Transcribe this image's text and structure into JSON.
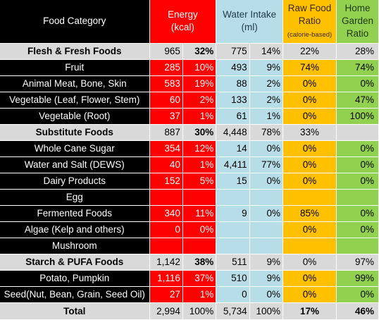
{
  "header": {
    "category": "Food Category",
    "energy_line1": "Energy",
    "energy_line2": "(kcal)",
    "water_line1": "Water Intake",
    "water_line2": "(ml)",
    "raw_line1": "Raw Food",
    "raw_line2": "Ratio",
    "raw_line3": "(calorie-based)",
    "home_line1": "Home",
    "home_line2": "Garden",
    "home_line3": "Ratio"
  },
  "rows": [
    {
      "name": "Flesh & Fresh Foods",
      "energy": "965",
      "energy_pct": "32%",
      "water": "775",
      "water_pct": "14%",
      "raw": "22%",
      "home": "28%"
    },
    {
      "name": "Fruit",
      "energy": "285",
      "energy_pct": "10%",
      "water": "493",
      "water_pct": "9%",
      "raw": "74%",
      "home": "74%"
    },
    {
      "name": "Animal Meat, Bone, Skin",
      "energy": "583",
      "energy_pct": "19%",
      "water": "88",
      "water_pct": "2%",
      "raw": "0%",
      "home": "0%"
    },
    {
      "name": "Vegetable (Leaf, Flower, Stem)",
      "energy": "60",
      "energy_pct": "2%",
      "water": "133",
      "water_pct": "2%",
      "raw": "0%",
      "home": "47%"
    },
    {
      "name": "Vegetable (Root)",
      "energy": "37",
      "energy_pct": "1%",
      "water": "61",
      "water_pct": "1%",
      "raw": "0%",
      "home": "100%"
    },
    {
      "name": "Substitute Foods",
      "energy": "887",
      "energy_pct": "30%",
      "water": "4,448",
      "water_pct": "78%",
      "raw": "33%",
      "home": ""
    },
    {
      "name": "Whole Cane Sugar",
      "energy": "354",
      "energy_pct": "12%",
      "water": "14",
      "water_pct": "0%",
      "raw": "0%",
      "home": "0%"
    },
    {
      "name": "Water and Salt (DEWS)",
      "energy": "40",
      "energy_pct": "1%",
      "water": "4,411",
      "water_pct": "77%",
      "raw": "0%",
      "home": "0%"
    },
    {
      "name": "Dairy Products",
      "energy": "152",
      "energy_pct": "5%",
      "water": "15",
      "water_pct": "0%",
      "raw": "0%",
      "home": "0%"
    },
    {
      "name": "Egg",
      "energy": "",
      "energy_pct": "",
      "water": "",
      "water_pct": "",
      "raw": "",
      "home": ""
    },
    {
      "name": "Fermented Foods",
      "energy": "340",
      "energy_pct": "11%",
      "water": "9",
      "water_pct": "0%",
      "raw": "85%",
      "home": "0%"
    },
    {
      "name": "Algae (Kelp and others)",
      "energy": "0",
      "energy_pct": "0%",
      "water": "",
      "water_pct": "",
      "raw": "0%",
      "home": "0%"
    },
    {
      "name": "Mushroom",
      "energy": "",
      "energy_pct": "",
      "water": "",
      "water_pct": "",
      "raw": "",
      "home": ""
    },
    {
      "name": "Starch & PUFA Foods",
      "energy": "1,142",
      "energy_pct": "38%",
      "water": "511",
      "water_pct": "9%",
      "raw": "0%",
      "home": "97%"
    },
    {
      "name": "Potato, Pumpkin",
      "energy": "1,116",
      "energy_pct": "37%",
      "water": "510",
      "water_pct": "9%",
      "raw": "0%",
      "home": "99%"
    },
    {
      "name": "Seed(Nut, Bean, Grain, Seed Oil)",
      "energy": "27",
      "energy_pct": "1%",
      "water": "0",
      "water_pct": "0%",
      "raw": "0%",
      "home": "0%"
    },
    {
      "name": "Total",
      "energy": "2,994",
      "energy_pct": "100%",
      "water": "5,734",
      "water_pct": "100%",
      "raw": "17%",
      "home": "46%"
    }
  ],
  "colors": {
    "category_bg": "#000000",
    "energy_bg": "#ff0000",
    "water_bg": "#b7dde8",
    "raw_bg": "#ffc000",
    "home_bg": "#92d050",
    "group_bg": "#d9d9d9"
  }
}
